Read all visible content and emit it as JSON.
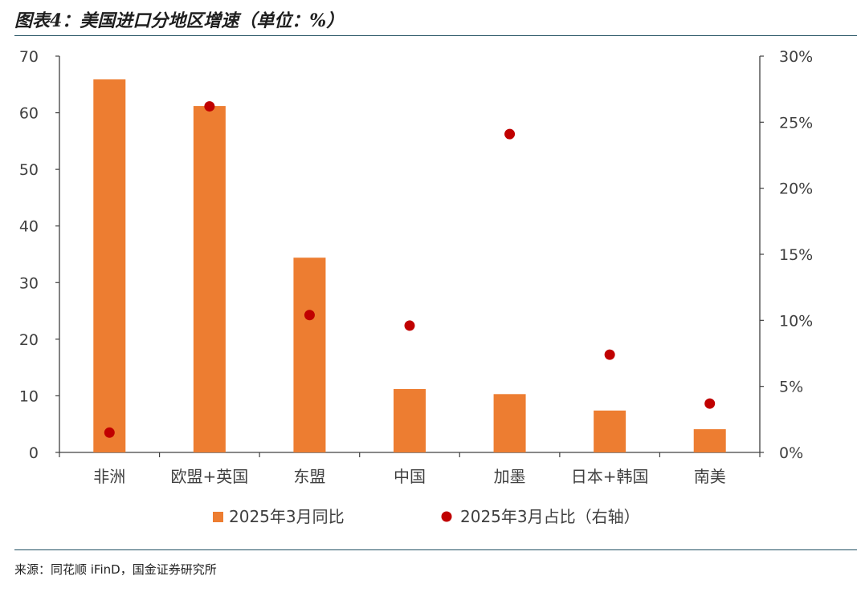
{
  "title": "图表4：美国进口分地区增速（单位：%）",
  "source": "来源：同花顺 iFinD，国金证券研究所",
  "colors": {
    "bar": "#ED7D31",
    "dot": "#C00000",
    "axis": "#404040",
    "rule": "#1f4e60"
  },
  "chart_data": {
    "type": "bar",
    "categories": [
      "非洲",
      "欧盟+英国",
      "东盟",
      "中国",
      "加墨",
      "日本+韩国",
      "南美"
    ],
    "series": [
      {
        "name": "2025年3月同比",
        "kind": "bar",
        "axis": "left",
        "values": [
          65.9,
          61.2,
          34.4,
          11.2,
          10.3,
          7.4,
          4.1
        ]
      },
      {
        "name": "2025年3月占比（右轴）",
        "kind": "scatter",
        "axis": "right",
        "values": [
          1.5,
          26.2,
          10.4,
          9.6,
          24.1,
          7.4,
          3.7
        ]
      }
    ],
    "yleft": {
      "lim": [
        0,
        70
      ],
      "ticks": [
        "0",
        "10",
        "20",
        "30",
        "40",
        "50",
        "60",
        "70"
      ]
    },
    "yright": {
      "lim": [
        0,
        30
      ],
      "ticks": [
        "0%",
        "5%",
        "10%",
        "15%",
        "20%",
        "25%",
        "30%"
      ]
    },
    "legend": "bottom",
    "grid": false
  }
}
